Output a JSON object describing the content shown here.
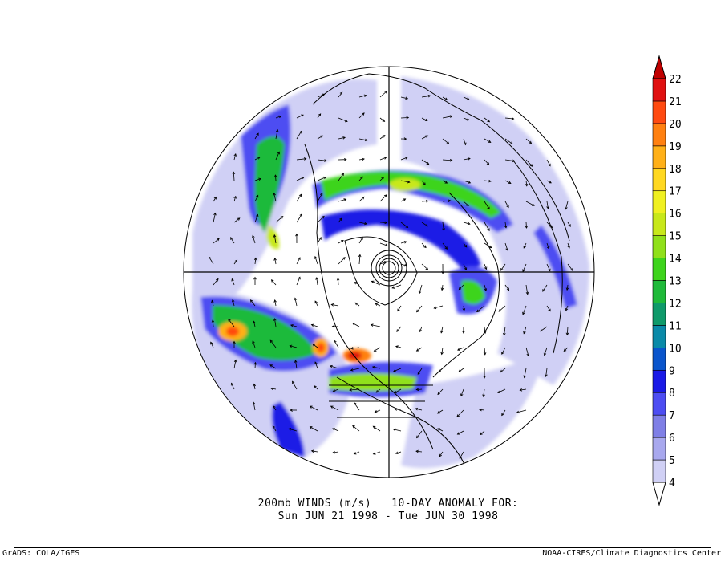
{
  "title": {
    "line1": "200mb WINDS (m/s)   10-DAY ANOMALY FOR:",
    "line2": "Sun JUN 21 1998 - Tue JUN 30 1998"
  },
  "footer": {
    "left": "GrADS: COLA/IGES",
    "right": "NOAA-CIRES/Climate Diagnostics Center"
  },
  "colorbar": {
    "levels": [
      "4",
      "5",
      "6",
      "7",
      "8",
      "9",
      "10",
      "11",
      "12",
      "13",
      "14",
      "15",
      "16",
      "17",
      "18",
      "19",
      "20",
      "21",
      "22"
    ],
    "colors": [
      "#ffffff",
      "#d0d0f5",
      "#a8a8ee",
      "#7f7fe6",
      "#4d4df2",
      "#1a1ae6",
      "#0a55cc",
      "#0a8aa8",
      "#0f9a6a",
      "#1fba3a",
      "#3ed41c",
      "#90e01a",
      "#c8e81a",
      "#f0f020",
      "#ffd820",
      "#ffb018",
      "#ff8010",
      "#ff4a10",
      "#e01010",
      "#c00000"
    ]
  }
}
